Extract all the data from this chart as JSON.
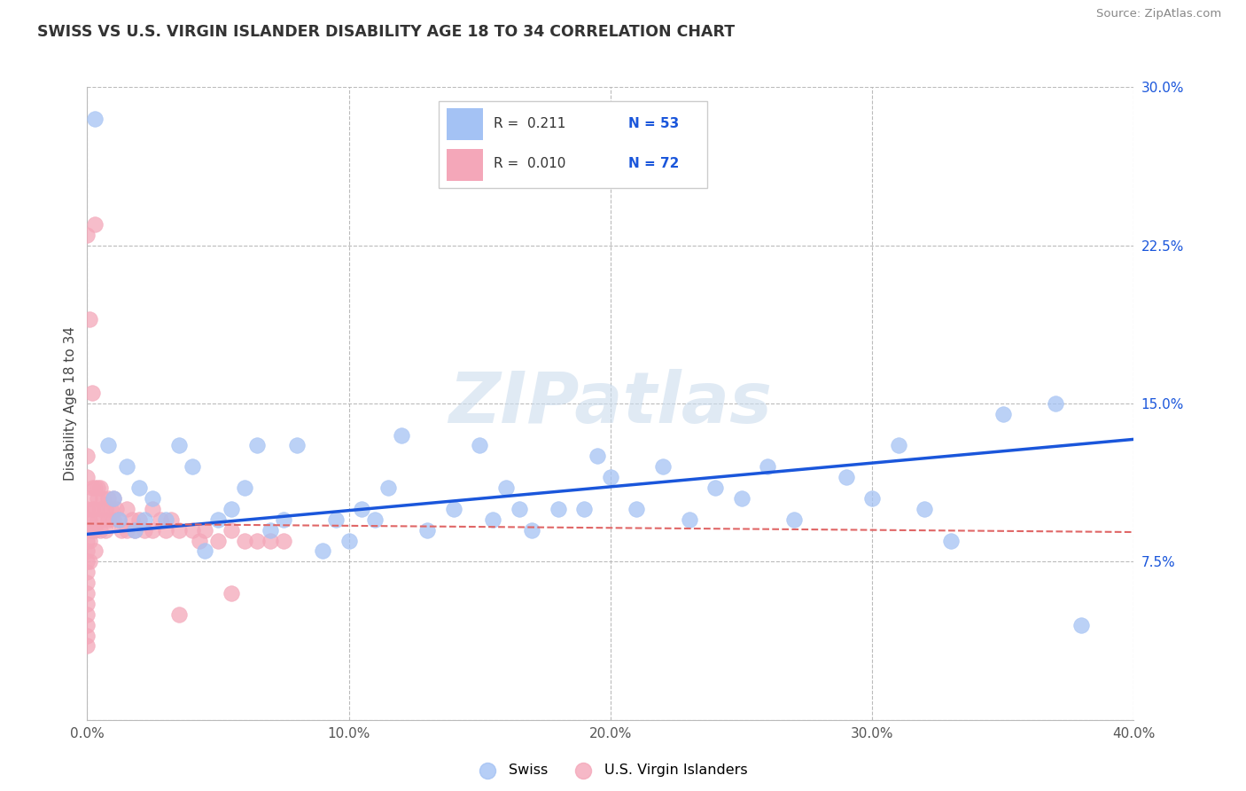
{
  "title": "SWISS VS U.S. VIRGIN ISLANDER DISABILITY AGE 18 TO 34 CORRELATION CHART",
  "source": "Source: ZipAtlas.com",
  "ylabel": "Disability Age 18 to 34",
  "xlim": [
    0.0,
    0.4
  ],
  "ylim": [
    0.0,
    0.3
  ],
  "xticks": [
    0.0,
    0.1,
    0.2,
    0.3,
    0.4
  ],
  "xtick_labels": [
    "0.0%",
    "10.0%",
    "20.0%",
    "30.0%",
    "40.0%"
  ],
  "yticks": [
    0.0,
    0.075,
    0.15,
    0.225,
    0.3
  ],
  "ytick_labels": [
    "",
    "7.5%",
    "15.0%",
    "22.5%",
    "30.0%"
  ],
  "blue_dot_color": "#a4c2f4",
  "pink_dot_color": "#f4a7b9",
  "blue_line_color": "#1a56db",
  "pink_line_color": "#e06666",
  "ytick_color": "#1a56db",
  "R_swiss": 0.211,
  "N_swiss": 53,
  "R_virgin": 0.01,
  "N_virgin": 72,
  "legend_label_swiss": "Swiss",
  "legend_label_virgin": "U.S. Virgin Islanders",
  "watermark": "ZIPatlas",
  "swiss_trend_x0": 0.0,
  "swiss_trend_y0": 0.088,
  "swiss_trend_x1": 0.4,
  "swiss_trend_y1": 0.133,
  "virgin_trend_x0": 0.0,
  "virgin_trend_y0": 0.093,
  "virgin_trend_x1": 0.4,
  "virgin_trend_y1": 0.089,
  "swiss_x": [
    0.003,
    0.008,
    0.01,
    0.012,
    0.015,
    0.018,
    0.02,
    0.022,
    0.025,
    0.03,
    0.035,
    0.04,
    0.045,
    0.05,
    0.055,
    0.06,
    0.065,
    0.07,
    0.075,
    0.08,
    0.09,
    0.095,
    0.1,
    0.105,
    0.11,
    0.115,
    0.12,
    0.13,
    0.14,
    0.15,
    0.155,
    0.16,
    0.165,
    0.17,
    0.18,
    0.19,
    0.195,
    0.2,
    0.21,
    0.22,
    0.23,
    0.24,
    0.25,
    0.26,
    0.27,
    0.29,
    0.3,
    0.31,
    0.32,
    0.33,
    0.35,
    0.37,
    0.38
  ],
  "swiss_y": [
    0.285,
    0.13,
    0.105,
    0.095,
    0.12,
    0.09,
    0.11,
    0.095,
    0.105,
    0.095,
    0.13,
    0.12,
    0.08,
    0.095,
    0.1,
    0.11,
    0.13,
    0.09,
    0.095,
    0.13,
    0.08,
    0.095,
    0.085,
    0.1,
    0.095,
    0.11,
    0.135,
    0.09,
    0.1,
    0.13,
    0.095,
    0.11,
    0.1,
    0.09,
    0.1,
    0.1,
    0.125,
    0.115,
    0.1,
    0.12,
    0.095,
    0.11,
    0.105,
    0.12,
    0.095,
    0.115,
    0.105,
    0.13,
    0.1,
    0.085,
    0.145,
    0.15,
    0.045
  ],
  "virgin_x": [
    0.0,
    0.0,
    0.0,
    0.0,
    0.0,
    0.0,
    0.0,
    0.0,
    0.0,
    0.0,
    0.0,
    0.0,
    0.0,
    0.0,
    0.001,
    0.001,
    0.001,
    0.001,
    0.002,
    0.002,
    0.002,
    0.003,
    0.003,
    0.003,
    0.003,
    0.004,
    0.004,
    0.005,
    0.005,
    0.005,
    0.006,
    0.006,
    0.007,
    0.007,
    0.008,
    0.008,
    0.009,
    0.01,
    0.01,
    0.011,
    0.012,
    0.013,
    0.015,
    0.015,
    0.017,
    0.018,
    0.02,
    0.022,
    0.025,
    0.025,
    0.028,
    0.03,
    0.032,
    0.035,
    0.04,
    0.043,
    0.045,
    0.05,
    0.055,
    0.06,
    0.065,
    0.07,
    0.075,
    0.0,
    0.001,
    0.002,
    0.003,
    0.004,
    0.035,
    0.0,
    0.055,
    0.0
  ],
  "virgin_y": [
    0.1,
    0.095,
    0.09,
    0.085,
    0.08,
    0.075,
    0.07,
    0.065,
    0.06,
    0.055,
    0.05,
    0.045,
    0.04,
    0.035,
    0.105,
    0.095,
    0.085,
    0.075,
    0.11,
    0.1,
    0.09,
    0.11,
    0.1,
    0.09,
    0.08,
    0.105,
    0.095,
    0.11,
    0.1,
    0.09,
    0.105,
    0.095,
    0.1,
    0.09,
    0.105,
    0.095,
    0.1,
    0.105,
    0.095,
    0.1,
    0.095,
    0.09,
    0.1,
    0.09,
    0.095,
    0.09,
    0.095,
    0.09,
    0.1,
    0.09,
    0.095,
    0.09,
    0.095,
    0.09,
    0.09,
    0.085,
    0.09,
    0.085,
    0.09,
    0.085,
    0.085,
    0.085,
    0.085,
    0.23,
    0.19,
    0.155,
    0.235,
    0.11,
    0.05,
    0.125,
    0.06,
    0.115
  ]
}
